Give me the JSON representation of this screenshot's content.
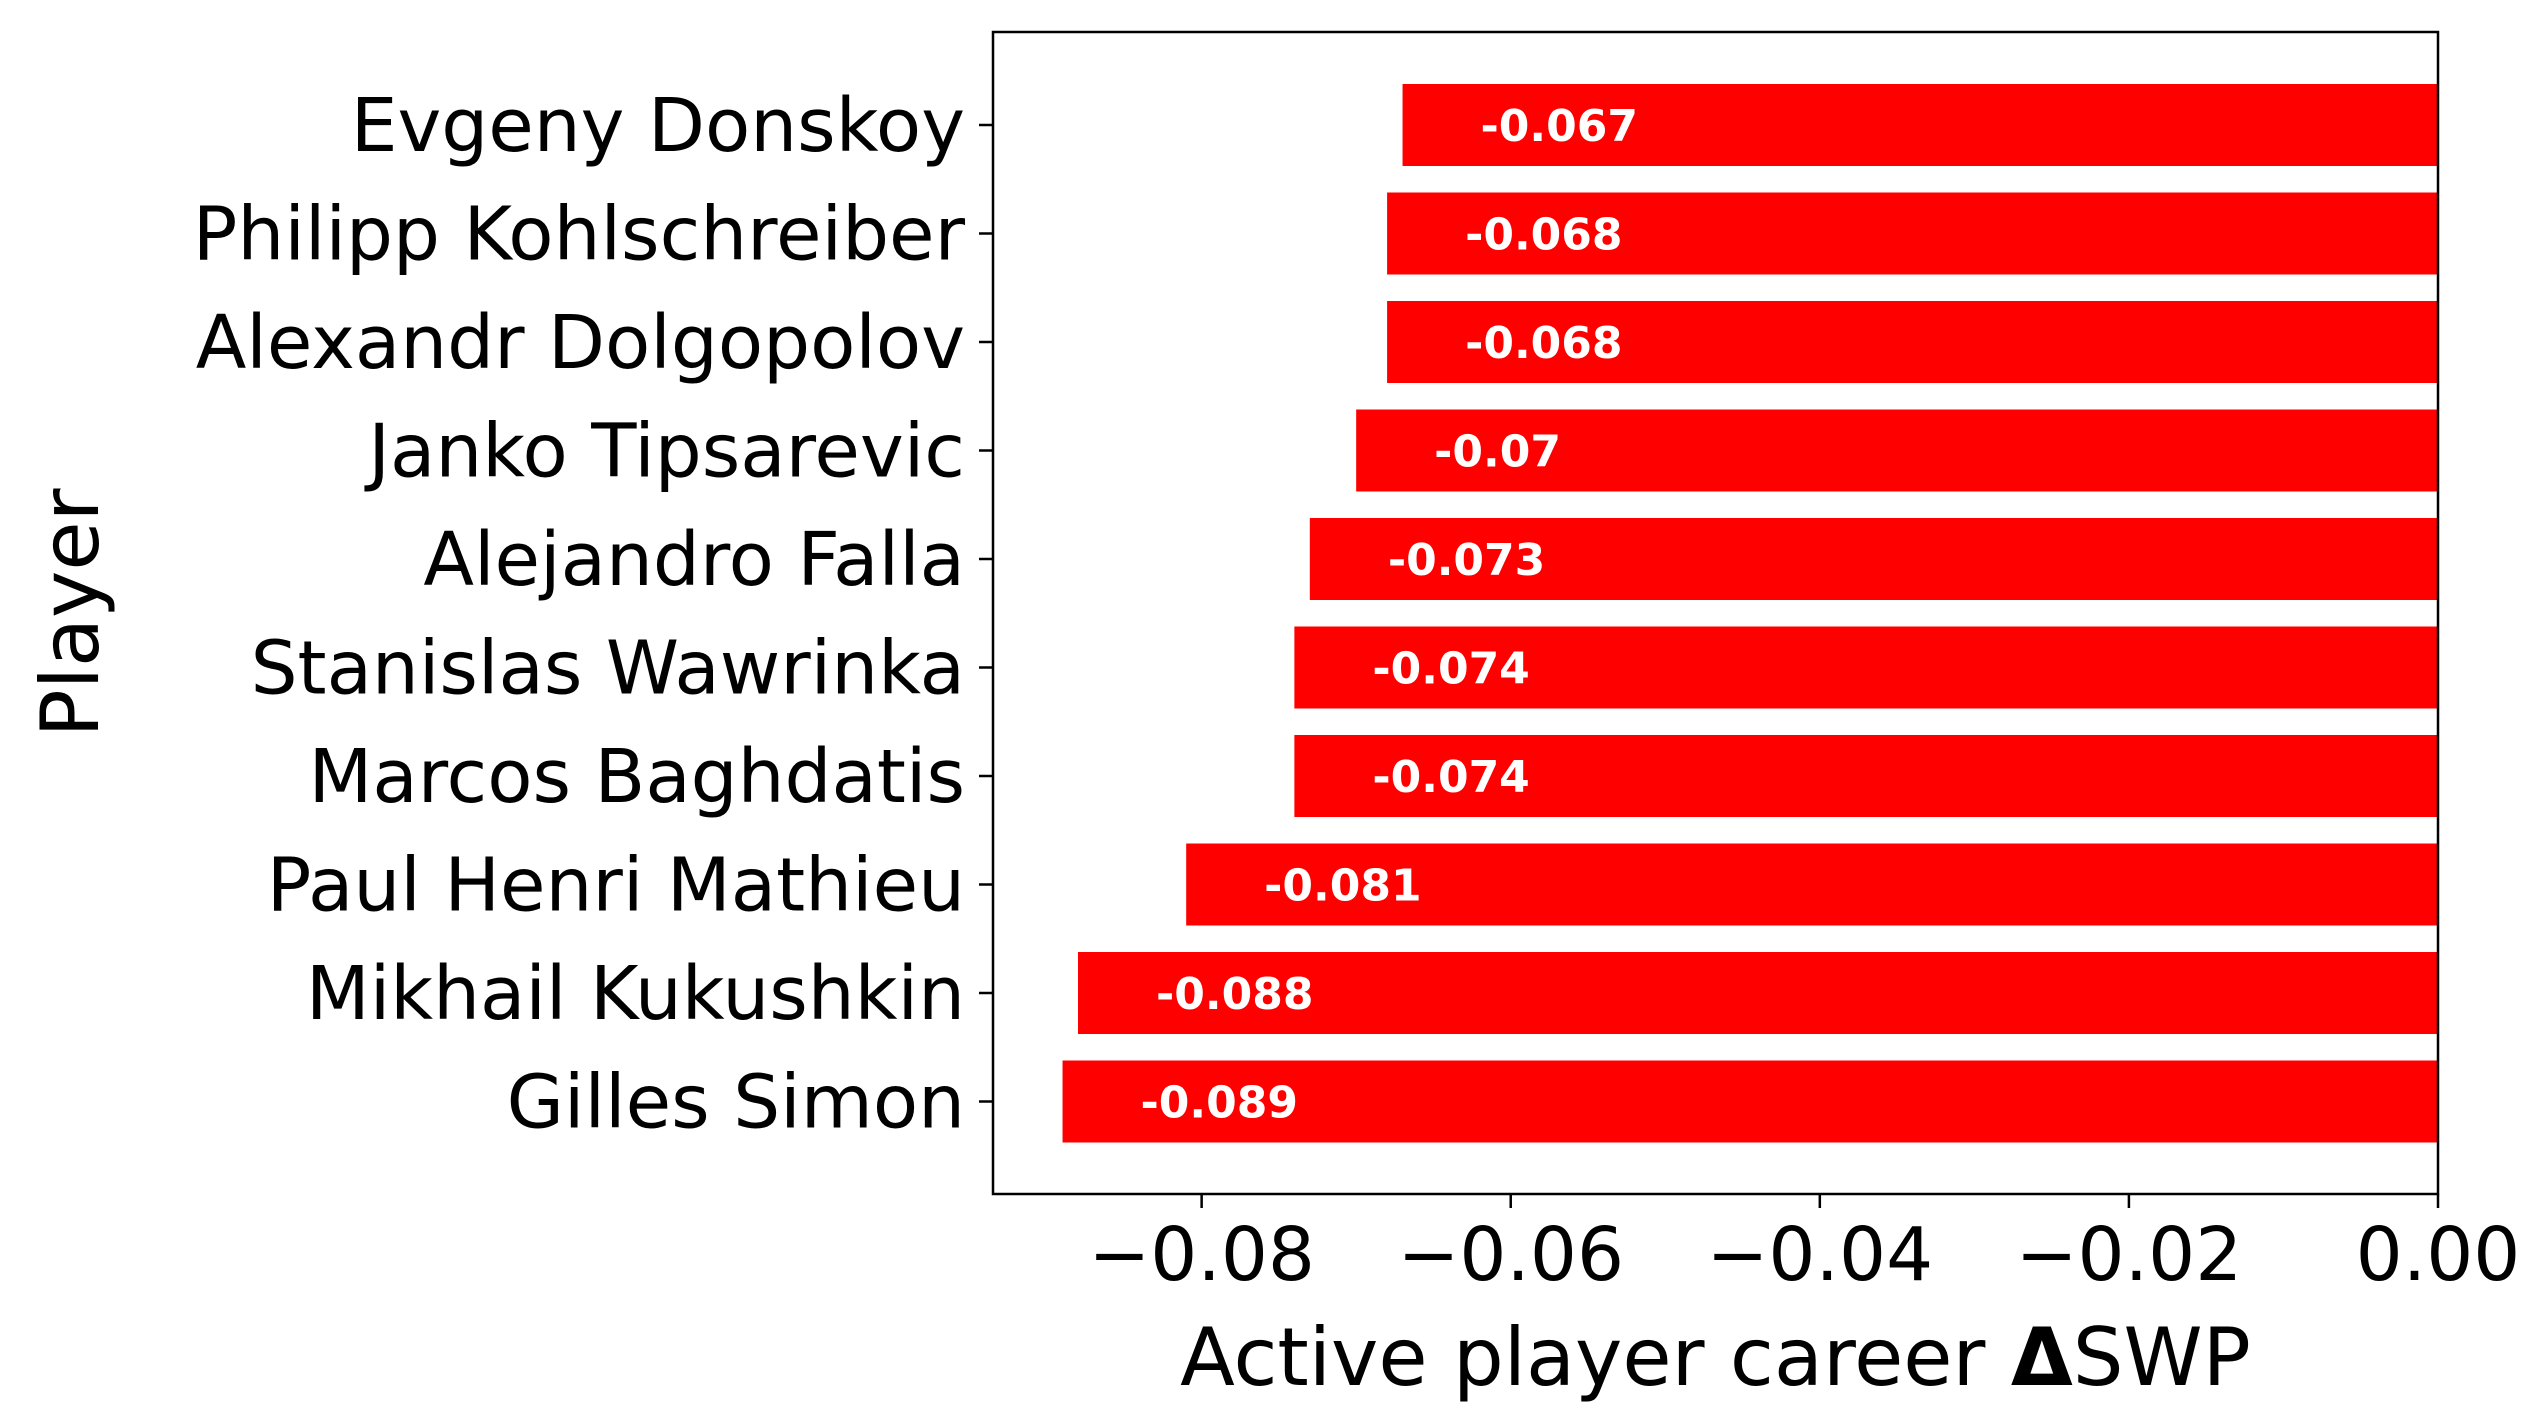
{
  "chart_data": {
    "type": "bar",
    "orientation": "horizontal",
    "title": "",
    "xlabel_prefix": "Active player career ",
    "xlabel_delta": "Δ",
    "xlabel_suffix": "SWP",
    "ylabel": "Player",
    "categories": [
      "Evgeny Donskoy",
      "Philipp Kohlschreiber",
      "Alexandr Dolgopolov",
      "Janko Tipsarevic",
      "Alejandro Falla",
      "Stanislas Wawrinka",
      "Marcos Baghdatis",
      "Paul Henri Mathieu",
      "Mikhail Kukushkin",
      "Gilles Simon"
    ],
    "values": [
      -0.067,
      -0.068,
      -0.068,
      -0.07,
      -0.073,
      -0.074,
      -0.074,
      -0.081,
      -0.088,
      -0.089
    ],
    "data_labels": [
      "-0.067",
      "-0.068",
      "-0.068",
      "-0.07",
      "-0.073",
      "-0.074",
      "-0.074",
      "-0.081",
      "-0.088",
      "-0.089"
    ],
    "xlim": [
      -0.0935,
      0.0
    ],
    "xticks": [
      -0.08,
      -0.06,
      -0.04,
      -0.02,
      0.0
    ],
    "xtick_labels": [
      "−0.08",
      "−0.06",
      "−0.04",
      "−0.02",
      "0.00"
    ],
    "grid": false,
    "legend": "none",
    "bar_color": "#ff0000",
    "label_color": "#ffffff"
  }
}
